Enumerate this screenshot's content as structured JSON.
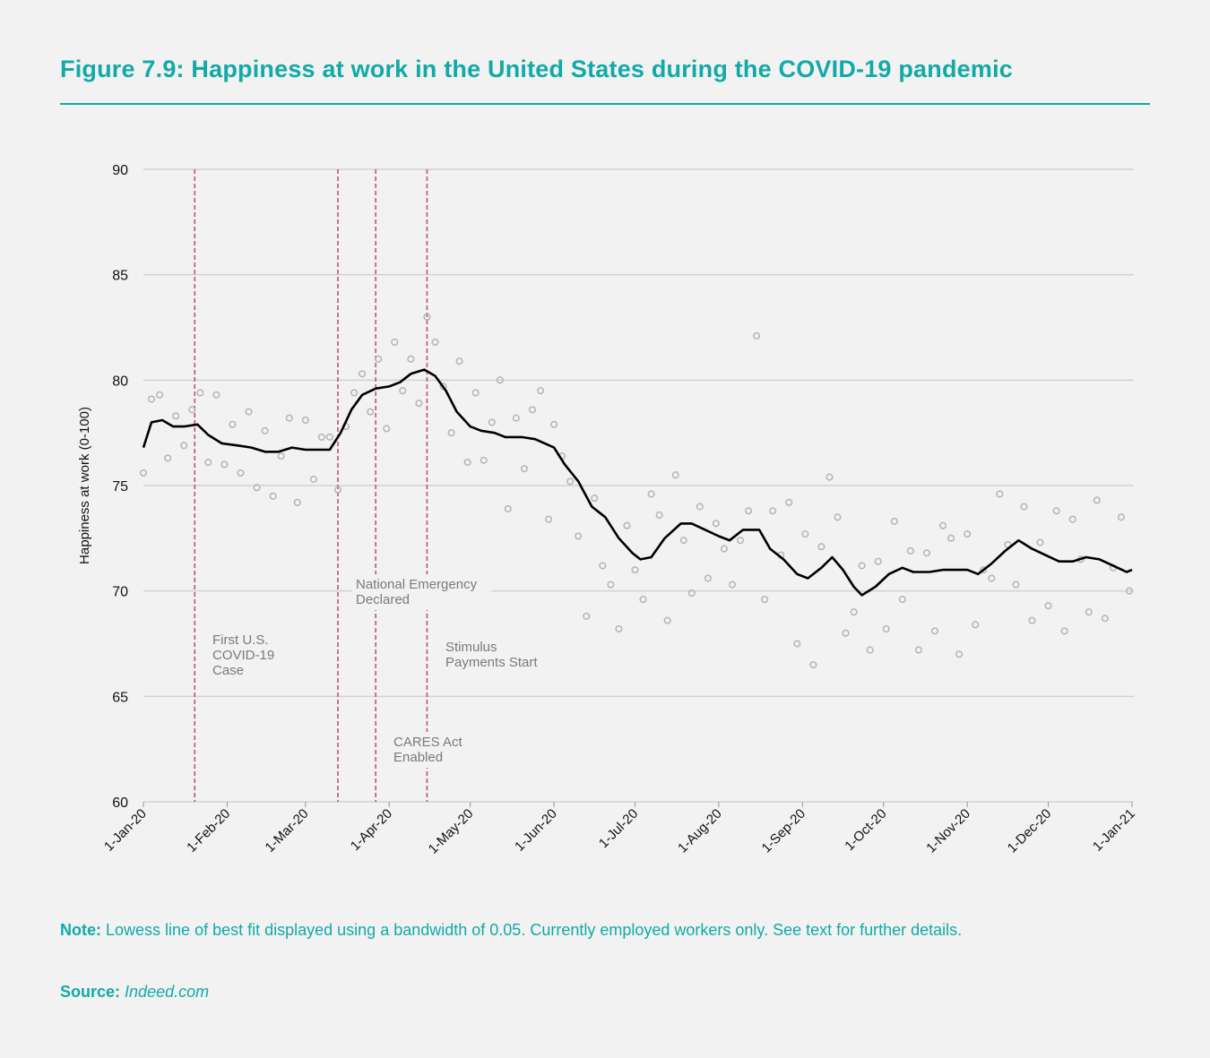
{
  "title": "Figure 7.9: Happiness at work in the United States during the COVID-19 pandemic",
  "note": {
    "label": "Note:",
    "text": "Lowess line of best fit displayed using a bandwidth of 0.05. Currently employed workers only. See text for further details."
  },
  "source": {
    "label": "Source:",
    "text": "Indeed.com"
  },
  "colors": {
    "accent": "#12aaa8",
    "event_line": "#c0508a",
    "points": "#b4b4b4",
    "lowess": "#000000",
    "grid": "#d2d2d2",
    "annotation": "#7a7a7a"
  },
  "chart_data": {
    "type": "scatter",
    "title": "",
    "xlabel": "",
    "ylabel": "Happiness at work (0-100)",
    "ylim": [
      60,
      90
    ],
    "yticks": [
      "60",
      "65",
      "70",
      "75",
      "80",
      "85",
      "90"
    ],
    "xlim": [
      "2020-01-01",
      "2021-01-01"
    ],
    "xticks": [
      {
        "date": "2020-01-01",
        "label": "1-Jan-20"
      },
      {
        "date": "2020-02-01",
        "label": "1-Feb-20"
      },
      {
        "date": "2020-03-01",
        "label": "1-Mar-20"
      },
      {
        "date": "2020-04-01",
        "label": "1-Apr-20"
      },
      {
        "date": "2020-05-01",
        "label": "1-May-20"
      },
      {
        "date": "2020-06-01",
        "label": "1-Jun-20"
      },
      {
        "date": "2020-07-01",
        "label": "1-Jul-20"
      },
      {
        "date": "2020-08-01",
        "label": "1-Aug-20"
      },
      {
        "date": "2020-09-01",
        "label": "1-Sep-20"
      },
      {
        "date": "2020-10-01",
        "label": "1-Oct-20"
      },
      {
        "date": "2020-11-01",
        "label": "1-Nov-20"
      },
      {
        "date": "2020-12-01",
        "label": "1-Dec-20"
      },
      {
        "date": "2021-01-01",
        "label": "1-Jan-21"
      }
    ],
    "grid": true,
    "events": [
      {
        "date": "2020-01-20",
        "label": [
          "First U.S.",
          "COVID-19",
          "Case"
        ]
      },
      {
        "date": "2020-03-13",
        "label": [
          "National Emergency",
          "Declared"
        ]
      },
      {
        "date": "2020-03-27",
        "label": [
          "CARES Act",
          "Enabled"
        ]
      },
      {
        "date": "2020-04-15",
        "label": [
          "Stimulus",
          "Payments Start"
        ]
      }
    ],
    "points": [
      [
        "2020-01-01",
        75.6
      ],
      [
        "2020-01-04",
        79.1
      ],
      [
        "2020-01-07",
        79.3
      ],
      [
        "2020-01-10",
        76.3
      ],
      [
        "2020-01-13",
        78.3
      ],
      [
        "2020-01-16",
        76.9
      ],
      [
        "2020-01-19",
        78.6
      ],
      [
        "2020-01-22",
        79.4
      ],
      [
        "2020-01-25",
        76.1
      ],
      [
        "2020-01-28",
        79.3
      ],
      [
        "2020-01-31",
        76.0
      ],
      [
        "2020-02-03",
        77.9
      ],
      [
        "2020-02-06",
        75.6
      ],
      [
        "2020-02-09",
        78.5
      ],
      [
        "2020-02-12",
        74.9
      ],
      [
        "2020-02-15",
        77.6
      ],
      [
        "2020-02-18",
        74.5
      ],
      [
        "2020-02-21",
        76.4
      ],
      [
        "2020-02-24",
        78.2
      ],
      [
        "2020-02-27",
        74.2
      ],
      [
        "2020-03-01",
        78.1
      ],
      [
        "2020-03-04",
        75.3
      ],
      [
        "2020-03-07",
        77.3
      ],
      [
        "2020-03-10",
        77.3
      ],
      [
        "2020-03-13",
        74.8
      ],
      [
        "2020-03-16",
        77.8
      ],
      [
        "2020-03-19",
        79.4
      ],
      [
        "2020-03-22",
        80.3
      ],
      [
        "2020-03-25",
        78.5
      ],
      [
        "2020-03-28",
        81.0
      ],
      [
        "2020-03-31",
        77.7
      ],
      [
        "2020-04-03",
        81.8
      ],
      [
        "2020-04-06",
        79.5
      ],
      [
        "2020-04-09",
        81.0
      ],
      [
        "2020-04-12",
        78.9
      ],
      [
        "2020-04-15",
        83.0
      ],
      [
        "2020-04-18",
        81.8
      ],
      [
        "2020-04-21",
        79.7
      ],
      [
        "2020-04-24",
        77.5
      ],
      [
        "2020-04-27",
        80.9
      ],
      [
        "2020-04-30",
        76.1
      ],
      [
        "2020-05-03",
        79.4
      ],
      [
        "2020-05-06",
        76.2
      ],
      [
        "2020-05-09",
        78.0
      ],
      [
        "2020-05-12",
        80.0
      ],
      [
        "2020-05-15",
        73.9
      ],
      [
        "2020-05-18",
        78.2
      ],
      [
        "2020-05-21",
        75.8
      ],
      [
        "2020-05-24",
        78.6
      ],
      [
        "2020-05-27",
        79.5
      ],
      [
        "2020-05-30",
        73.4
      ],
      [
        "2020-06-01",
        77.9
      ],
      [
        "2020-06-04",
        76.4
      ],
      [
        "2020-06-07",
        75.2
      ],
      [
        "2020-06-10",
        72.6
      ],
      [
        "2020-06-13",
        68.8
      ],
      [
        "2020-06-16",
        74.4
      ],
      [
        "2020-06-19",
        71.2
      ],
      [
        "2020-06-22",
        70.3
      ],
      [
        "2020-06-25",
        68.2
      ],
      [
        "2020-06-28",
        73.1
      ],
      [
        "2020-07-01",
        71.0
      ],
      [
        "2020-07-04",
        69.6
      ],
      [
        "2020-07-07",
        74.6
      ],
      [
        "2020-07-10",
        73.6
      ],
      [
        "2020-07-13",
        68.6
      ],
      [
        "2020-07-16",
        75.5
      ],
      [
        "2020-07-19",
        72.4
      ],
      [
        "2020-07-22",
        69.9
      ],
      [
        "2020-07-25",
        74.0
      ],
      [
        "2020-07-28",
        70.6
      ],
      [
        "2020-07-31",
        73.2
      ],
      [
        "2020-08-03",
        72.0
      ],
      [
        "2020-08-06",
        70.3
      ],
      [
        "2020-08-09",
        72.4
      ],
      [
        "2020-08-12",
        73.8
      ],
      [
        "2020-08-15",
        82.1
      ],
      [
        "2020-08-18",
        69.6
      ],
      [
        "2020-08-21",
        73.8
      ],
      [
        "2020-08-24",
        71.7
      ],
      [
        "2020-08-27",
        74.2
      ],
      [
        "2020-08-30",
        67.5
      ],
      [
        "2020-09-02",
        72.7
      ],
      [
        "2020-09-05",
        66.5
      ],
      [
        "2020-09-08",
        72.1
      ],
      [
        "2020-09-11",
        75.4
      ],
      [
        "2020-09-14",
        73.5
      ],
      [
        "2020-09-17",
        68.0
      ],
      [
        "2020-09-20",
        69.0
      ],
      [
        "2020-09-23",
        71.2
      ],
      [
        "2020-09-26",
        67.2
      ],
      [
        "2020-09-29",
        71.4
      ],
      [
        "2020-10-02",
        68.2
      ],
      [
        "2020-10-05",
        73.3
      ],
      [
        "2020-10-08",
        69.6
      ],
      [
        "2020-10-11",
        71.9
      ],
      [
        "2020-10-14",
        67.2
      ],
      [
        "2020-10-17",
        71.8
      ],
      [
        "2020-10-20",
        68.1
      ],
      [
        "2020-10-23",
        73.1
      ],
      [
        "2020-10-26",
        72.5
      ],
      [
        "2020-10-29",
        67.0
      ],
      [
        "2020-11-01",
        72.7
      ],
      [
        "2020-11-04",
        68.4
      ],
      [
        "2020-11-07",
        71.0
      ],
      [
        "2020-11-10",
        70.6
      ],
      [
        "2020-11-13",
        74.6
      ],
      [
        "2020-11-16",
        72.2
      ],
      [
        "2020-11-19",
        70.3
      ],
      [
        "2020-11-22",
        74.0
      ],
      [
        "2020-11-25",
        68.6
      ],
      [
        "2020-11-28",
        72.3
      ],
      [
        "2020-12-01",
        69.3
      ],
      [
        "2020-12-04",
        73.8
      ],
      [
        "2020-12-07",
        68.1
      ],
      [
        "2020-12-10",
        73.4
      ],
      [
        "2020-12-13",
        71.5
      ],
      [
        "2020-12-16",
        69.0
      ],
      [
        "2020-12-19",
        74.3
      ],
      [
        "2020-12-22",
        68.7
      ],
      [
        "2020-12-25",
        71.1
      ],
      [
        "2020-12-28",
        73.5
      ],
      [
        "2020-12-31",
        70.0
      ]
    ],
    "lowess": [
      [
        "2020-01-01",
        76.8
      ],
      [
        "2020-01-04",
        78.0
      ],
      [
        "2020-01-08",
        78.1
      ],
      [
        "2020-01-12",
        77.8
      ],
      [
        "2020-01-16",
        77.8
      ],
      [
        "2020-01-21",
        77.9
      ],
      [
        "2020-01-25",
        77.4
      ],
      [
        "2020-01-30",
        77.0
      ],
      [
        "2020-02-05",
        76.9
      ],
      [
        "2020-02-10",
        76.8
      ],
      [
        "2020-02-15",
        76.6
      ],
      [
        "2020-02-20",
        76.6
      ],
      [
        "2020-02-25",
        76.8
      ],
      [
        "2020-03-01",
        76.7
      ],
      [
        "2020-03-06",
        76.7
      ],
      [
        "2020-03-10",
        76.7
      ],
      [
        "2020-03-14",
        77.5
      ],
      [
        "2020-03-18",
        78.6
      ],
      [
        "2020-03-22",
        79.3
      ],
      [
        "2020-03-27",
        79.6
      ],
      [
        "2020-04-01",
        79.7
      ],
      [
        "2020-04-05",
        79.9
      ],
      [
        "2020-04-09",
        80.3
      ],
      [
        "2020-04-14",
        80.5
      ],
      [
        "2020-04-18",
        80.2
      ],
      [
        "2020-04-22",
        79.5
      ],
      [
        "2020-04-26",
        78.5
      ],
      [
        "2020-05-01",
        77.8
      ],
      [
        "2020-05-05",
        77.6
      ],
      [
        "2020-05-10",
        77.5
      ],
      [
        "2020-05-14",
        77.3
      ],
      [
        "2020-05-20",
        77.3
      ],
      [
        "2020-05-25",
        77.2
      ],
      [
        "2020-06-01",
        76.8
      ],
      [
        "2020-06-05",
        76.0
      ],
      [
        "2020-06-10",
        75.2
      ],
      [
        "2020-06-15",
        74.0
      ],
      [
        "2020-06-20",
        73.5
      ],
      [
        "2020-06-25",
        72.5
      ],
      [
        "2020-06-30",
        71.8
      ],
      [
        "2020-07-03",
        71.5
      ],
      [
        "2020-07-07",
        71.6
      ],
      [
        "2020-07-12",
        72.5
      ],
      [
        "2020-07-18",
        73.2
      ],
      [
        "2020-07-22",
        73.2
      ],
      [
        "2020-07-27",
        72.9
      ],
      [
        "2020-08-01",
        72.6
      ],
      [
        "2020-08-05",
        72.4
      ],
      [
        "2020-08-10",
        72.9
      ],
      [
        "2020-08-16",
        72.9
      ],
      [
        "2020-08-20",
        72.0
      ],
      [
        "2020-08-25",
        71.5
      ],
      [
        "2020-08-30",
        70.8
      ],
      [
        "2020-09-03",
        70.6
      ],
      [
        "2020-09-08",
        71.1
      ],
      [
        "2020-09-12",
        71.6
      ],
      [
        "2020-09-16",
        71.0
      ],
      [
        "2020-09-20",
        70.2
      ],
      [
        "2020-09-23",
        69.8
      ],
      [
        "2020-09-28",
        70.2
      ],
      [
        "2020-10-03",
        70.8
      ],
      [
        "2020-10-08",
        71.1
      ],
      [
        "2020-10-12",
        70.9
      ],
      [
        "2020-10-18",
        70.9
      ],
      [
        "2020-10-23",
        71.0
      ],
      [
        "2020-10-28",
        71.0
      ],
      [
        "2020-11-01",
        71.0
      ],
      [
        "2020-11-05",
        70.8
      ],
      [
        "2020-11-10",
        71.3
      ],
      [
        "2020-11-15",
        71.9
      ],
      [
        "2020-11-20",
        72.4
      ],
      [
        "2020-11-25",
        72.0
      ],
      [
        "2020-11-30",
        71.7
      ],
      [
        "2020-12-05",
        71.4
      ],
      [
        "2020-12-10",
        71.4
      ],
      [
        "2020-12-15",
        71.6
      ],
      [
        "2020-12-20",
        71.5
      ],
      [
        "2020-12-25",
        71.2
      ],
      [
        "2020-12-30",
        70.9
      ],
      [
        "2021-01-01",
        71.0
      ]
    ]
  }
}
